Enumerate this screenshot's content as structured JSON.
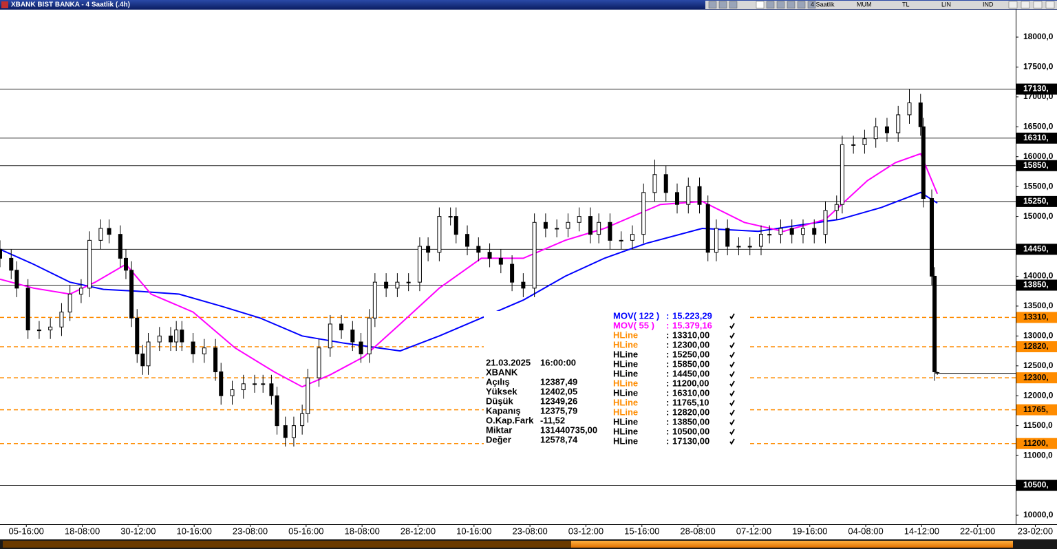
{
  "window": {
    "toolbar": [
      "4 Saatlik",
      "MUM",
      "TL",
      "LIN",
      "IND"
    ]
  },
  "chart_data": {
    "type": "candlestick",
    "title": "XBANK BIST BANKA - 4 Saatlik (.4h)",
    "x": [
      0,
      4,
      6,
      10,
      14,
      18,
      22,
      25,
      29,
      32,
      36,
      39,
      43,
      45,
      47,
      49,
      51,
      53,
      57,
      61,
      63,
      65,
      69,
      73,
      77,
      79,
      83,
      87,
      91,
      94,
      97,
      99,
      102,
      105,
      108,
      110,
      114,
      118,
      122,
      126,
      129,
      132,
      134,
      138,
      142,
      146,
      150,
      153,
      157,
      161,
      163,
      167,
      171,
      175,
      179,
      183,
      187,
      191,
      195,
      199,
      203,
      207,
      211,
      214,
      218,
      222,
      226,
      230,
      234,
      238,
      242,
      246,
      250,
      253,
      256,
      260,
      264,
      268,
      272,
      275,
      279,
      283,
      287,
      291,
      295,
      299,
      301,
      305,
      309,
      313,
      317,
      321,
      325,
      329,
      330,
      333,
      334,
      335
    ],
    "open": [
      14450,
      14300,
      14100,
      13800,
      13100,
      13100,
      13150,
      13400,
      13700,
      13800,
      14600,
      14800,
      14700,
      14300,
      14100,
      13300,
      12700,
      12500,
      12900,
      13000,
      12900,
      13100,
      12900,
      12700,
      12800,
      12400,
      12000,
      12100,
      12200,
      12200,
      12200,
      12000,
      11500,
      11300,
      11500,
      11700,
      12300,
      12800,
      13200,
      13100,
      12900,
      12700,
      13300,
      13900,
      13800,
      13900,
      13900,
      14500,
      14400,
      15000,
      15000,
      14700,
      14500,
      14400,
      14300,
      14200,
      13900,
      13800,
      14900,
      14800,
      14800,
      14900,
      15000,
      14700,
      14900,
      14600,
      14600,
      14700,
      15400,
      15700,
      15400,
      15200,
      15500,
      15200,
      14400,
      14800,
      14500,
      14500,
      14500,
      14700,
      14700,
      14800,
      14700,
      14800,
      14700,
      15100,
      15200,
      16200,
      16200,
      16300,
      16500,
      16400,
      16700,
      16900,
      16500,
      15300,
      14000,
      12387.49
    ],
    "high": [
      14600,
      14450,
      14250,
      13950,
      13250,
      13300,
      13550,
      13850,
      13950,
      14750,
      14950,
      14950,
      14850,
      14450,
      14250,
      13450,
      12850,
      13050,
      13150,
      13150,
      13250,
      13250,
      13050,
      12950,
      12950,
      12550,
      12250,
      12350,
      12350,
      12350,
      12350,
      12150,
      11650,
      11650,
      11850,
      12450,
      12950,
      13350,
      13350,
      13250,
      13050,
      13450,
      14050,
      14050,
      14050,
      14050,
      14650,
      14650,
      15150,
      15150,
      15150,
      14850,
      14650,
      14550,
      14450,
      14350,
      14050,
      15050,
      15050,
      14950,
      15050,
      15150,
      15150,
      15050,
      15050,
      14750,
      14850,
      15550,
      15950,
      15850,
      15550,
      15650,
      15650,
      15350,
      14950,
      14950,
      14650,
      14650,
      14850,
      14850,
      14950,
      14950,
      14950,
      14950,
      15250,
      15350,
      16350,
      16350,
      16450,
      16650,
      16650,
      16850,
      17130,
      17050,
      16650,
      15450,
      14150,
      12402.05
    ],
    "low": [
      14150,
      13950,
      13650,
      12950,
      12950,
      12950,
      13000,
      13250,
      13550,
      13650,
      14450,
      14550,
      14150,
      13950,
      13150,
      12550,
      12350,
      12350,
      12750,
      12750,
      12750,
      12750,
      12550,
      12550,
      12250,
      11850,
      11850,
      11950,
      12050,
      12050,
      11850,
      11350,
      11150,
      11150,
      11350,
      11550,
      12150,
      12650,
      12950,
      12750,
      12550,
      12550,
      13150,
      13650,
      13650,
      13750,
      13750,
      14250,
      14250,
      14850,
      14550,
      14350,
      14250,
      14150,
      14050,
      13750,
      13650,
      13650,
      14650,
      14650,
      14650,
      14750,
      14550,
      14550,
      14450,
      14450,
      14450,
      14550,
      15250,
      15250,
      15050,
      15050,
      15050,
      14250,
      14250,
      14350,
      14350,
      14350,
      14350,
      14550,
      14550,
      14550,
      14550,
      14550,
      14550,
      14950,
      15050,
      16050,
      16050,
      16150,
      16250,
      16250,
      16550,
      16350,
      15150,
      13850,
      12250,
      12349.26
    ],
    "close": [
      14300,
      14100,
      13800,
      13100,
      13100,
      13150,
      13400,
      13700,
      13800,
      14600,
      14800,
      14700,
      14300,
      14100,
      13300,
      12700,
      12500,
      12900,
      13000,
      12900,
      13100,
      12900,
      12700,
      12800,
      12400,
      12000,
      12100,
      12200,
      12200,
      12200,
      12000,
      11500,
      11300,
      11500,
      11700,
      12300,
      12800,
      13200,
      13100,
      12900,
      12700,
      13300,
      13900,
      13800,
      13900,
      13900,
      14500,
      14400,
      15000,
      15000,
      14700,
      14500,
      14400,
      14300,
      14200,
      13900,
      13800,
      14900,
      14800,
      14800,
      14900,
      15000,
      14700,
      14900,
      14600,
      14600,
      14700,
      15400,
      15700,
      15400,
      15200,
      15500,
      15200,
      14400,
      14800,
      14500,
      14500,
      14500,
      14700,
      14700,
      14800,
      14700,
      14800,
      14700,
      15100,
      15200,
      16200,
      16200,
      16300,
      16500,
      16400,
      16700,
      16900,
      16500,
      15300,
      14000,
      12400,
      12375.79
    ],
    "up_color": "#ffffff",
    "down_color": "#000000",
    "xlim": [
      0,
      363
    ],
    "ylim": [
      9850,
      18460
    ],
    "xticks": [
      {
        "value": 9.4,
        "label": "05-16:00"
      },
      {
        "value": 29.4,
        "label": "18-08:00"
      },
      {
        "value": 49.4,
        "label": "30-12:00"
      },
      {
        "value": 69.4,
        "label": "10-16:00"
      },
      {
        "value": 89.4,
        "label": "23-08:00"
      },
      {
        "value": 109.4,
        "label": "05-16:00"
      },
      {
        "value": 129.4,
        "label": "18-08:00"
      },
      {
        "value": 149.4,
        "label": "28-12:00"
      },
      {
        "value": 169.4,
        "label": "10-16:00"
      },
      {
        "value": 189.4,
        "label": "23-08:00"
      },
      {
        "value": 209.4,
        "label": "03-12:00"
      },
      {
        "value": 229.4,
        "label": "15-16:00"
      },
      {
        "value": 249.4,
        "label": "28-08:00"
      },
      {
        "value": 269.4,
        "label": "07-12:00"
      },
      {
        "value": 289.4,
        "label": "19-16:00"
      },
      {
        "value": 309.4,
        "label": "04-08:00"
      },
      {
        "value": 329.4,
        "label": "14-12:00"
      },
      {
        "value": 349.4,
        "label": "22-01:00"
      },
      {
        "value": 370,
        "label": "23-02:00"
      }
    ],
    "yticks": [
      {
        "value": 10000,
        "label": "10000,0"
      },
      {
        "value": 11000,
        "label": "11000,0"
      },
      {
        "value": 11500,
        "label": "11500,0"
      },
      {
        "value": 12000,
        "label": "12000,0"
      },
      {
        "value": 12500,
        "label": "12500,0"
      },
      {
        "value": 13000,
        "label": "13000,0"
      },
      {
        "value": 13500,
        "label": "13500,0"
      },
      {
        "value": 14000,
        "label": "14000,0"
      },
      {
        "value": 15000,
        "label": "15000,0"
      },
      {
        "value": 15500,
        "label": "15500,0"
      },
      {
        "value": 16000,
        "label": "16000,0"
      },
      {
        "value": 16500,
        "label": "16500,0"
      },
      {
        "value": 17000,
        "label": "17000,0"
      },
      {
        "value": 17500,
        "label": "17500,0"
      },
      {
        "value": 18000,
        "label": "18000,0"
      }
    ],
    "legend_separator": ":",
    "lines": [
      {
        "name": "MOV( 122 )",
        "color": "#0000ff",
        "x": [
          0,
          12,
          25,
          37,
          49,
          64,
          79,
          93,
          108,
          123,
          143,
          157,
          172,
          187,
          202,
          216,
          231,
          251,
          271,
          285,
          300,
          315,
          329,
          335
        ],
        "values": [
          14450,
          14200,
          13900,
          13780,
          13750,
          13700,
          13500,
          13300,
          13000,
          12880,
          12750,
          13000,
          13300,
          13600,
          14000,
          14300,
          14550,
          14800,
          14750,
          14850,
          14950,
          15150,
          15400,
          15223.29
        ],
        "last_label": "15.223,29"
      },
      {
        "name": "MOV( 55 )",
        "color": "#ff00ff",
        "x": [
          0,
          12,
          25,
          34,
          45,
          54,
          69,
          84,
          98,
          108,
          118,
          130,
          143,
          157,
          172,
          187,
          202,
          216,
          236,
          251,
          266,
          280,
          295,
          310,
          320,
          329,
          335
        ],
        "values": [
          13950,
          13800,
          13700,
          13900,
          14200,
          13700,
          13400,
          12800,
          12400,
          12150,
          12350,
          12650,
          13200,
          13800,
          14300,
          14300,
          14600,
          14800,
          15200,
          15250,
          14900,
          14750,
          14950,
          15600,
          15900,
          16050,
          15379.16
        ],
        "last_label": "15.379,16"
      }
    ],
    "hlines": [
      {
        "name": "HLine",
        "value": 13310,
        "label": "13310,",
        "value_label": "13310,00",
        "color": "#ff8c00",
        "dashed": true
      },
      {
        "name": "HLine",
        "value": 12300,
        "label": "12300,",
        "value_label": "12300,00",
        "color": "#ff8c00",
        "dashed": true
      },
      {
        "name": "HLine",
        "value": 15250,
        "label": "15250,",
        "value_label": "15250,00",
        "color": "#000000",
        "dashed": false
      },
      {
        "name": "HLine",
        "value": 15850,
        "label": "15850,",
        "value_label": "15850,00",
        "color": "#000000",
        "dashed": false
      },
      {
        "name": "HLine",
        "value": 14450,
        "label": "14450,",
        "value_label": "14450,00",
        "color": "#000000",
        "dashed": false
      },
      {
        "name": "HLine",
        "value": 11200,
        "label": "11200,",
        "value_label": "11200,00",
        "color": "#ff8c00",
        "dashed": true
      },
      {
        "name": "HLine",
        "value": 16310,
        "label": "16310,",
        "value_label": "16310,00",
        "color": "#000000",
        "dashed": false
      },
      {
        "name": "HLine",
        "value": 11765.1,
        "label": "11765,",
        "value_label": "11765,10",
        "color": "#ff8c00",
        "dashed": true
      },
      {
        "name": "HLine",
        "value": 12820,
        "label": "12820,",
        "value_label": "12820,00",
        "color": "#ff8c00",
        "dashed": true
      },
      {
        "name": "HLine",
        "value": 13850,
        "label": "13850,",
        "value_label": "13850,00",
        "color": "#000000",
        "dashed": false
      },
      {
        "name": "HLine",
        "value": 10500,
        "label": "10500,",
        "value_label": "10500,00",
        "color": "#000000",
        "dashed": false
      },
      {
        "name": "HLine",
        "value": 17130,
        "label": "17130,",
        "value_label": "17130,00",
        "color": "#000000",
        "dashed": false
      }
    ],
    "info_box": {
      "date": "21.03.2025",
      "time": "16:00:00",
      "symbol": "XBANK",
      "rows": [
        {
          "label": "Açılış",
          "value": "12387,49"
        },
        {
          "label": "Yüksek",
          "value": "12402,05"
        },
        {
          "label": "Düşük",
          "value": "12349,26"
        },
        {
          "label": "Kapanış",
          "value": "12375,79"
        },
        {
          "label": "O.Kap.Fark",
          "value": "-11,52"
        },
        {
          "label": "Miktar",
          "value": "131440735,00"
        },
        {
          "label": "Değer",
          "value": "12578,74"
        }
      ]
    }
  }
}
